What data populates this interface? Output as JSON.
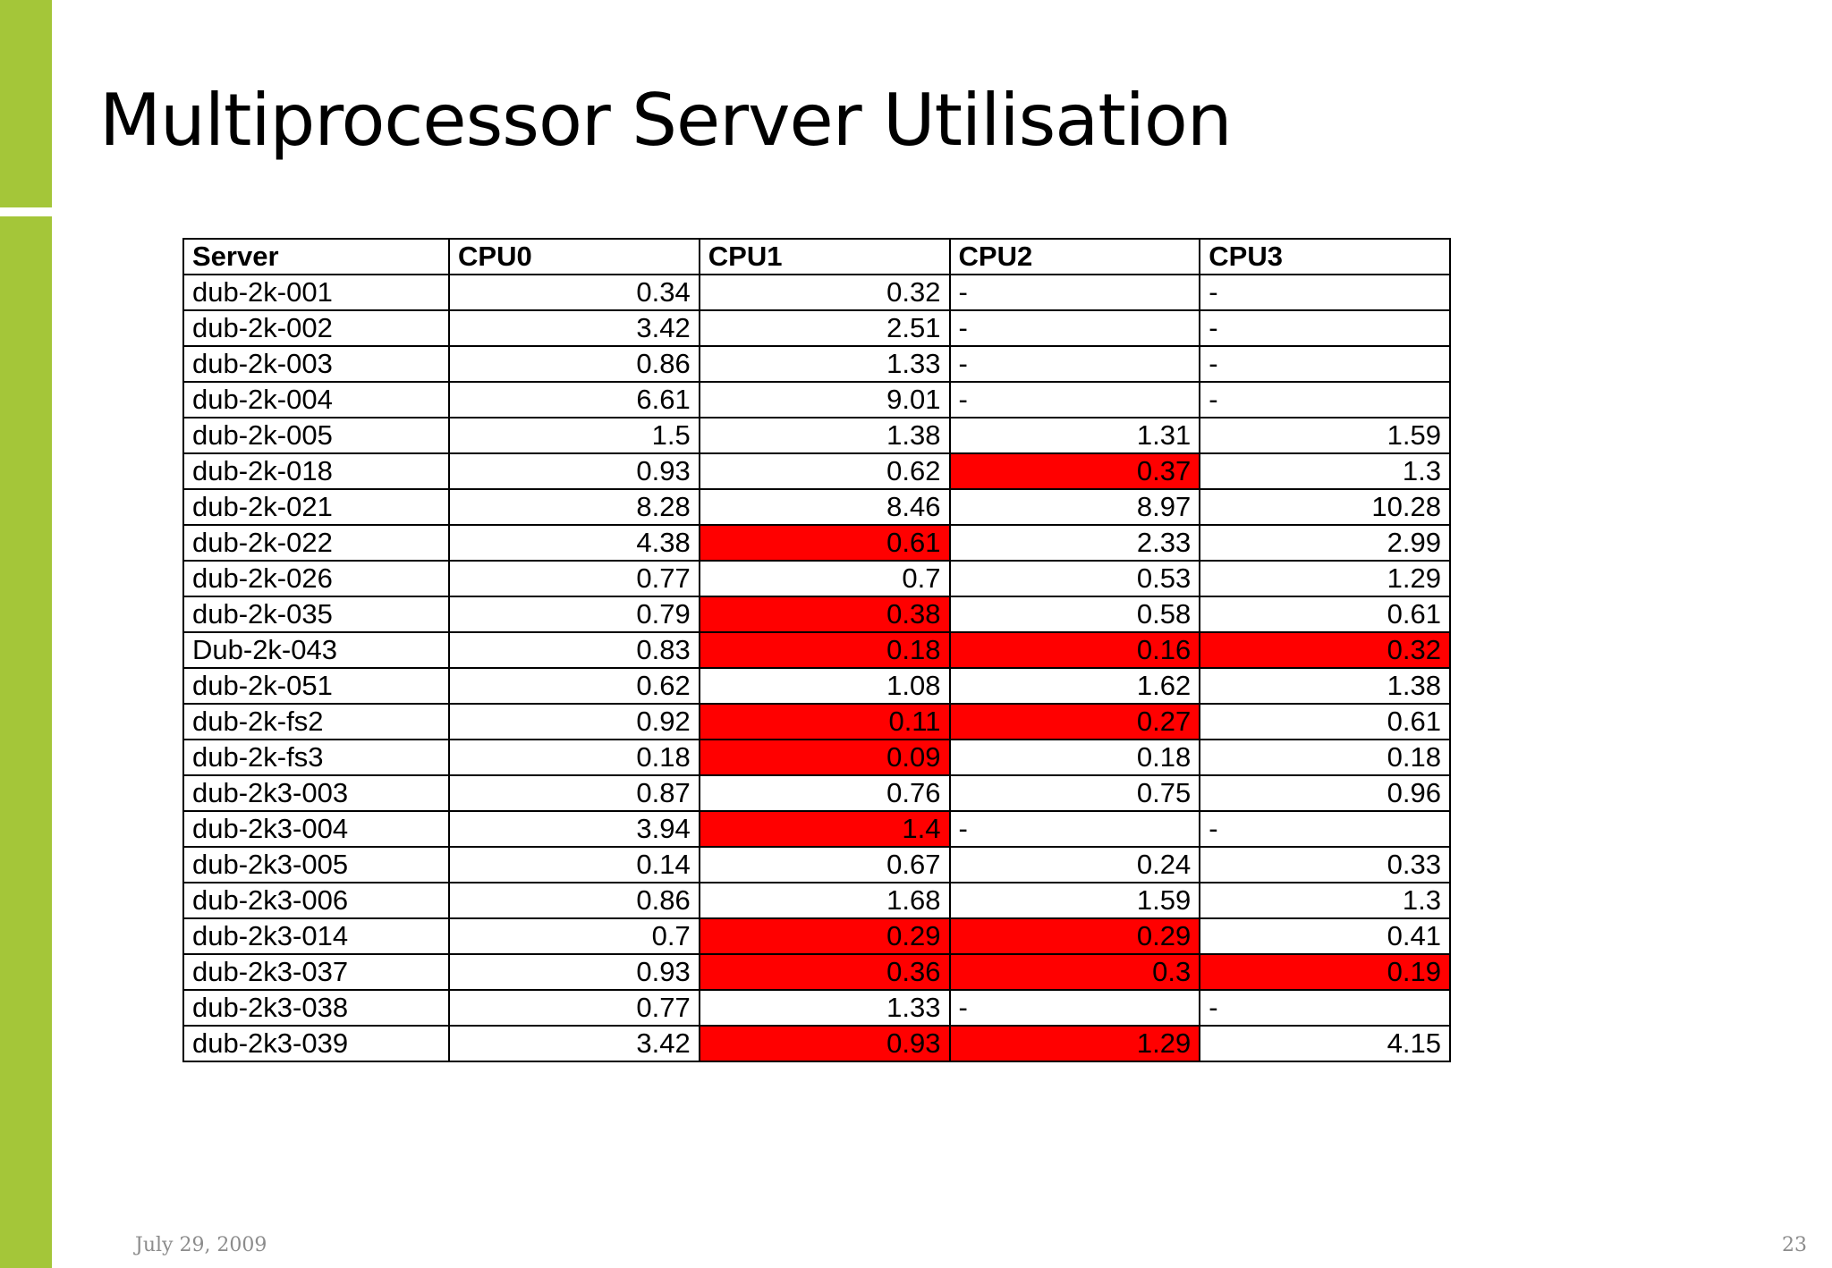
{
  "slide": {
    "title": "Multiprocessor Server Utilisation",
    "footer_date": "July 29, 2009",
    "page_number": "23"
  },
  "colors": {
    "accent": "#a4c639",
    "highlight": "#ff0000"
  },
  "table": {
    "headers": [
      "Server",
      "CPU0",
      "CPU1",
      "CPU2",
      "CPU3"
    ],
    "rows": [
      {
        "server": "dub-2k-001",
        "cpus": [
          "0.34",
          "0.32",
          "-",
          "-"
        ],
        "highlight": [
          false,
          false,
          false,
          false
        ]
      },
      {
        "server": "dub-2k-002",
        "cpus": [
          "3.42",
          "2.51",
          "-",
          "-"
        ],
        "highlight": [
          false,
          false,
          false,
          false
        ]
      },
      {
        "server": "dub-2k-003",
        "cpus": [
          "0.86",
          "1.33",
          "-",
          "-"
        ],
        "highlight": [
          false,
          false,
          false,
          false
        ]
      },
      {
        "server": "dub-2k-004",
        "cpus": [
          "6.61",
          "9.01",
          "-",
          "-"
        ],
        "highlight": [
          false,
          false,
          false,
          false
        ]
      },
      {
        "server": "dub-2k-005",
        "cpus": [
          "1.5",
          "1.38",
          "1.31",
          "1.59"
        ],
        "highlight": [
          false,
          false,
          false,
          false
        ]
      },
      {
        "server": "dub-2k-018",
        "cpus": [
          "0.93",
          "0.62",
          "0.37",
          "1.3"
        ],
        "highlight": [
          false,
          false,
          true,
          false
        ]
      },
      {
        "server": "dub-2k-021",
        "cpus": [
          "8.28",
          "8.46",
          "8.97",
          "10.28"
        ],
        "highlight": [
          false,
          false,
          false,
          false
        ]
      },
      {
        "server": "dub-2k-022",
        "cpus": [
          "4.38",
          "0.61",
          "2.33",
          "2.99"
        ],
        "highlight": [
          false,
          true,
          false,
          false
        ]
      },
      {
        "server": "dub-2k-026",
        "cpus": [
          "0.77",
          "0.7",
          "0.53",
          "1.29"
        ],
        "highlight": [
          false,
          false,
          false,
          false
        ]
      },
      {
        "server": "dub-2k-035",
        "cpus": [
          "0.79",
          "0.38",
          "0.58",
          "0.61"
        ],
        "highlight": [
          false,
          true,
          false,
          false
        ]
      },
      {
        "server": "Dub-2k-043",
        "cpus": [
          "0.83",
          "0.18",
          "0.16",
          "0.32"
        ],
        "highlight": [
          false,
          true,
          true,
          true
        ]
      },
      {
        "server": "dub-2k-051",
        "cpus": [
          "0.62",
          "1.08",
          "1.62",
          "1.38"
        ],
        "highlight": [
          false,
          false,
          false,
          false
        ]
      },
      {
        "server": "dub-2k-fs2",
        "cpus": [
          "0.92",
          "0.11",
          "0.27",
          "0.61"
        ],
        "highlight": [
          false,
          true,
          true,
          false
        ]
      },
      {
        "server": "dub-2k-fs3",
        "cpus": [
          "0.18",
          "0.09",
          "0.18",
          "0.18"
        ],
        "highlight": [
          false,
          true,
          false,
          false
        ]
      },
      {
        "server": "dub-2k3-003",
        "cpus": [
          "0.87",
          "0.76",
          "0.75",
          "0.96"
        ],
        "highlight": [
          false,
          false,
          false,
          false
        ]
      },
      {
        "server": "dub-2k3-004",
        "cpus": [
          "3.94",
          "1.4",
          "-",
          "-"
        ],
        "highlight": [
          false,
          true,
          false,
          false
        ]
      },
      {
        "server": "dub-2k3-005",
        "cpus": [
          "0.14",
          "0.67",
          "0.24",
          "0.33"
        ],
        "highlight": [
          false,
          false,
          false,
          false
        ]
      },
      {
        "server": "dub-2k3-006",
        "cpus": [
          "0.86",
          "1.68",
          "1.59",
          "1.3"
        ],
        "highlight": [
          false,
          false,
          false,
          false
        ]
      },
      {
        "server": "dub-2k3-014",
        "cpus": [
          "0.7",
          "0.29",
          "0.29",
          "0.41"
        ],
        "highlight": [
          false,
          true,
          true,
          false
        ]
      },
      {
        "server": "dub-2k3-037",
        "cpus": [
          "0.93",
          "0.36",
          "0.3",
          "0.19"
        ],
        "highlight": [
          false,
          true,
          true,
          true
        ]
      },
      {
        "server": "dub-2k3-038",
        "cpus": [
          "0.77",
          "1.33",
          "-",
          "-"
        ],
        "highlight": [
          false,
          false,
          false,
          false
        ]
      },
      {
        "server": "dub-2k3-039",
        "cpus": [
          "3.42",
          "0.93",
          "1.29",
          "4.15"
        ],
        "highlight": [
          false,
          true,
          true,
          false
        ]
      }
    ]
  }
}
